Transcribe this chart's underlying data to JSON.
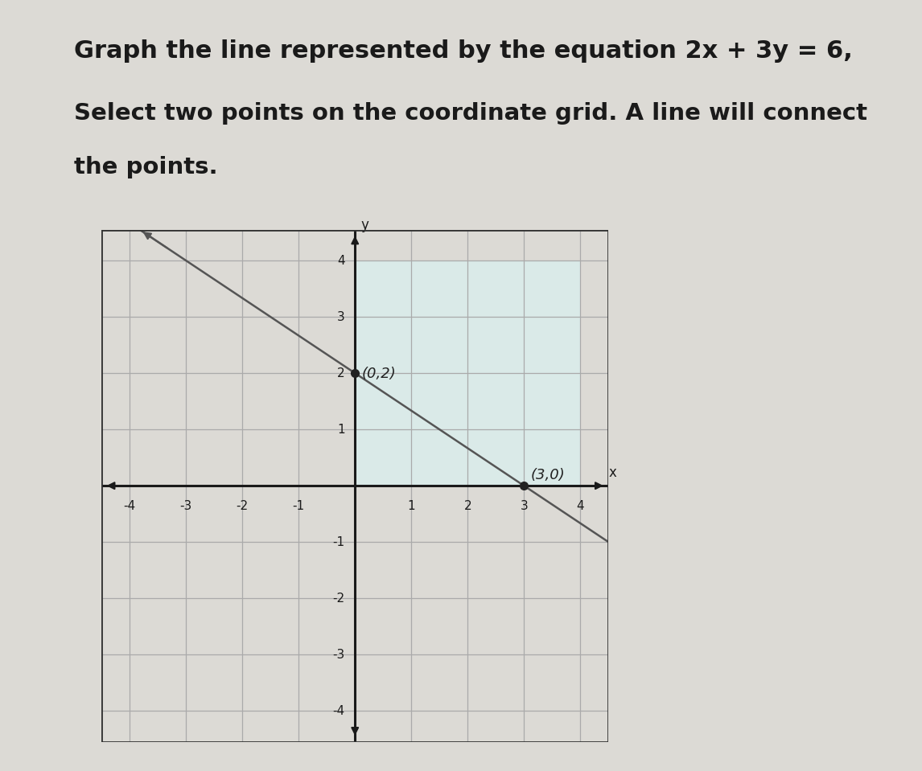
{
  "title_line1": "Graph the line represented by the equation 2x + 3y = 6,",
  "title_line2": "Select two points on the coordinate grid. A line will connect",
  "title_line3": "the points.",
  "point1": [
    0,
    2
  ],
  "point2": [
    3,
    0
  ],
  "label1": "(0,2)",
  "label2": "(3,0)",
  "axis_min": -4,
  "axis_max": 4,
  "grid_color": "#aaaaaa",
  "line_color": "#555555",
  "point_color": "#222222",
  "axis_color": "#1a1a1a",
  "grid_bg_color": "#f5f5f0",
  "grid_highlight_color": "#daeae8",
  "paper_color": "#dcdad5",
  "text_color": "#1a1a1a",
  "title_fontsize": 22,
  "subtitle_fontsize": 21,
  "label_fontsize": 13,
  "tick_fontsize": 11,
  "border_color": "#333333"
}
